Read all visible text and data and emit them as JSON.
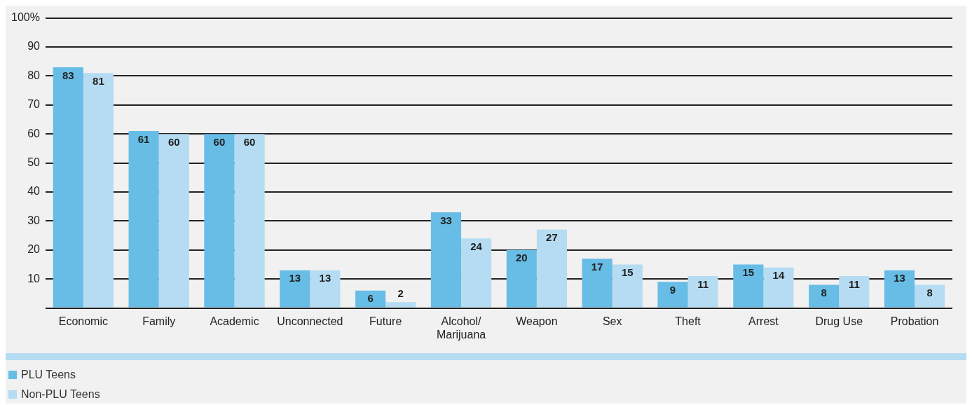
{
  "chart_data": {
    "type": "bar",
    "categories": [
      "Economic",
      "Family",
      "Academic",
      "Unconnected",
      "Future",
      "Alcohol/\nMarijuana",
      "Weapon",
      "Sex",
      "Theft",
      "Arrest",
      "Drug Use",
      "Probation"
    ],
    "series": [
      {
        "name": "PLU Teens",
        "color": "#67bde6",
        "values": [
          83,
          61,
          60,
          13,
          6,
          33,
          20,
          17,
          9,
          15,
          8,
          13
        ]
      },
      {
        "name": "Non-PLU Teens",
        "color": "#b5dcf2",
        "values": [
          81,
          60,
          60,
          13,
          2,
          24,
          27,
          15,
          11,
          14,
          11,
          8
        ]
      }
    ],
    "ylim": [
      0,
      100
    ],
    "yticks": [
      {
        "value": 0,
        "label": null
      },
      10,
      20,
      30,
      40,
      50,
      60,
      70,
      80,
      90,
      {
        "value": 100,
        "label": "100%"
      }
    ],
    "grid": "y",
    "legend": "bottom left",
    "data_labels": true
  }
}
